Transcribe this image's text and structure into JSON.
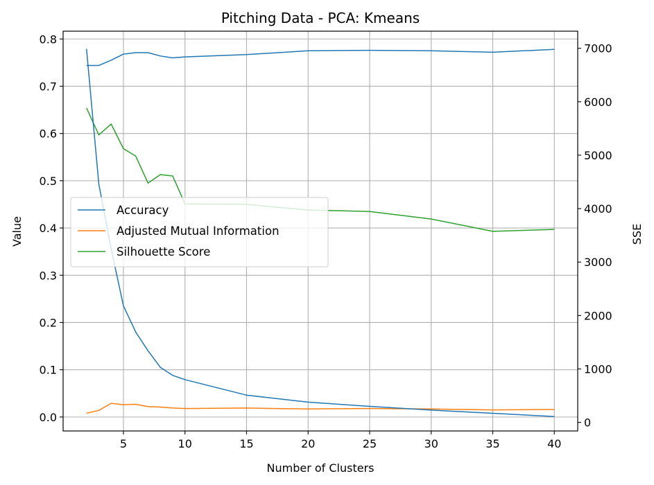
{
  "chart_data": {
    "type": "line",
    "title": "Pitching Data - PCA: Kmeans",
    "xlabel": "Number of Clusters",
    "ylabel": "Value",
    "y2label": "SSE",
    "xlim": [
      0.1,
      41.9
    ],
    "ylim": [
      -0.0295,
      0.8165
    ],
    "y2lim": [
      -160,
      7320
    ],
    "xticks": [
      5,
      10,
      15,
      20,
      25,
      30,
      35,
      40
    ],
    "yticks": [
      0.0,
      0.1,
      0.2,
      0.3,
      0.4,
      0.5,
      0.6,
      0.7,
      0.8
    ],
    "y2ticks": [
      0,
      1000,
      2000,
      3000,
      4000,
      5000,
      6000,
      7000
    ],
    "grid": true,
    "legend_position": "center-left",
    "series": [
      {
        "name": "Accuracy",
        "axis": "left",
        "color": "#1f77b4",
        "x": [
          2,
          3,
          4,
          5,
          6,
          7,
          8,
          9,
          10,
          15,
          20,
          25,
          30,
          35,
          40
        ],
        "values": [
          0.744,
          0.744,
          0.755,
          0.768,
          0.771,
          0.771,
          0.764,
          0.76,
          0.762,
          0.767,
          0.775,
          0.776,
          0.775,
          0.772,
          0.778
        ]
      },
      {
        "name": "Adjusted Mutual Information",
        "axis": "left",
        "color": "#ff7f0e",
        "x": [
          2,
          3,
          4,
          5,
          6,
          7,
          8,
          9,
          10,
          15,
          20,
          25,
          30,
          35,
          40
        ],
        "values": [
          0.008,
          0.014,
          0.029,
          0.026,
          0.027,
          0.022,
          0.021,
          0.019,
          0.018,
          0.019,
          0.017,
          0.018,
          0.017,
          0.015,
          0.016
        ]
      },
      {
        "name": "Silhouette Score",
        "axis": "left",
        "color": "#2ca02c",
        "x": [
          2,
          3,
          4,
          5,
          6,
          7,
          8,
          9,
          10,
          15,
          20,
          25,
          30,
          35,
          40
        ],
        "values": [
          0.654,
          0.597,
          0.62,
          0.568,
          0.552,
          0.495,
          0.513,
          0.51,
          0.451,
          0.45,
          0.438,
          0.435,
          0.419,
          0.393,
          0.397
        ]
      },
      {
        "axis": "right",
        "color": "#1f77b4",
        "x": [
          2,
          3,
          4,
          5,
          6,
          7,
          8,
          9,
          10,
          15,
          20,
          25,
          30,
          35,
          40
        ],
        "values": [
          6990,
          4460,
          3250,
          2180,
          1690,
          1340,
          1030,
          880,
          800,
          510,
          380,
          300,
          230,
          170,
          110
        ]
      }
    ]
  }
}
